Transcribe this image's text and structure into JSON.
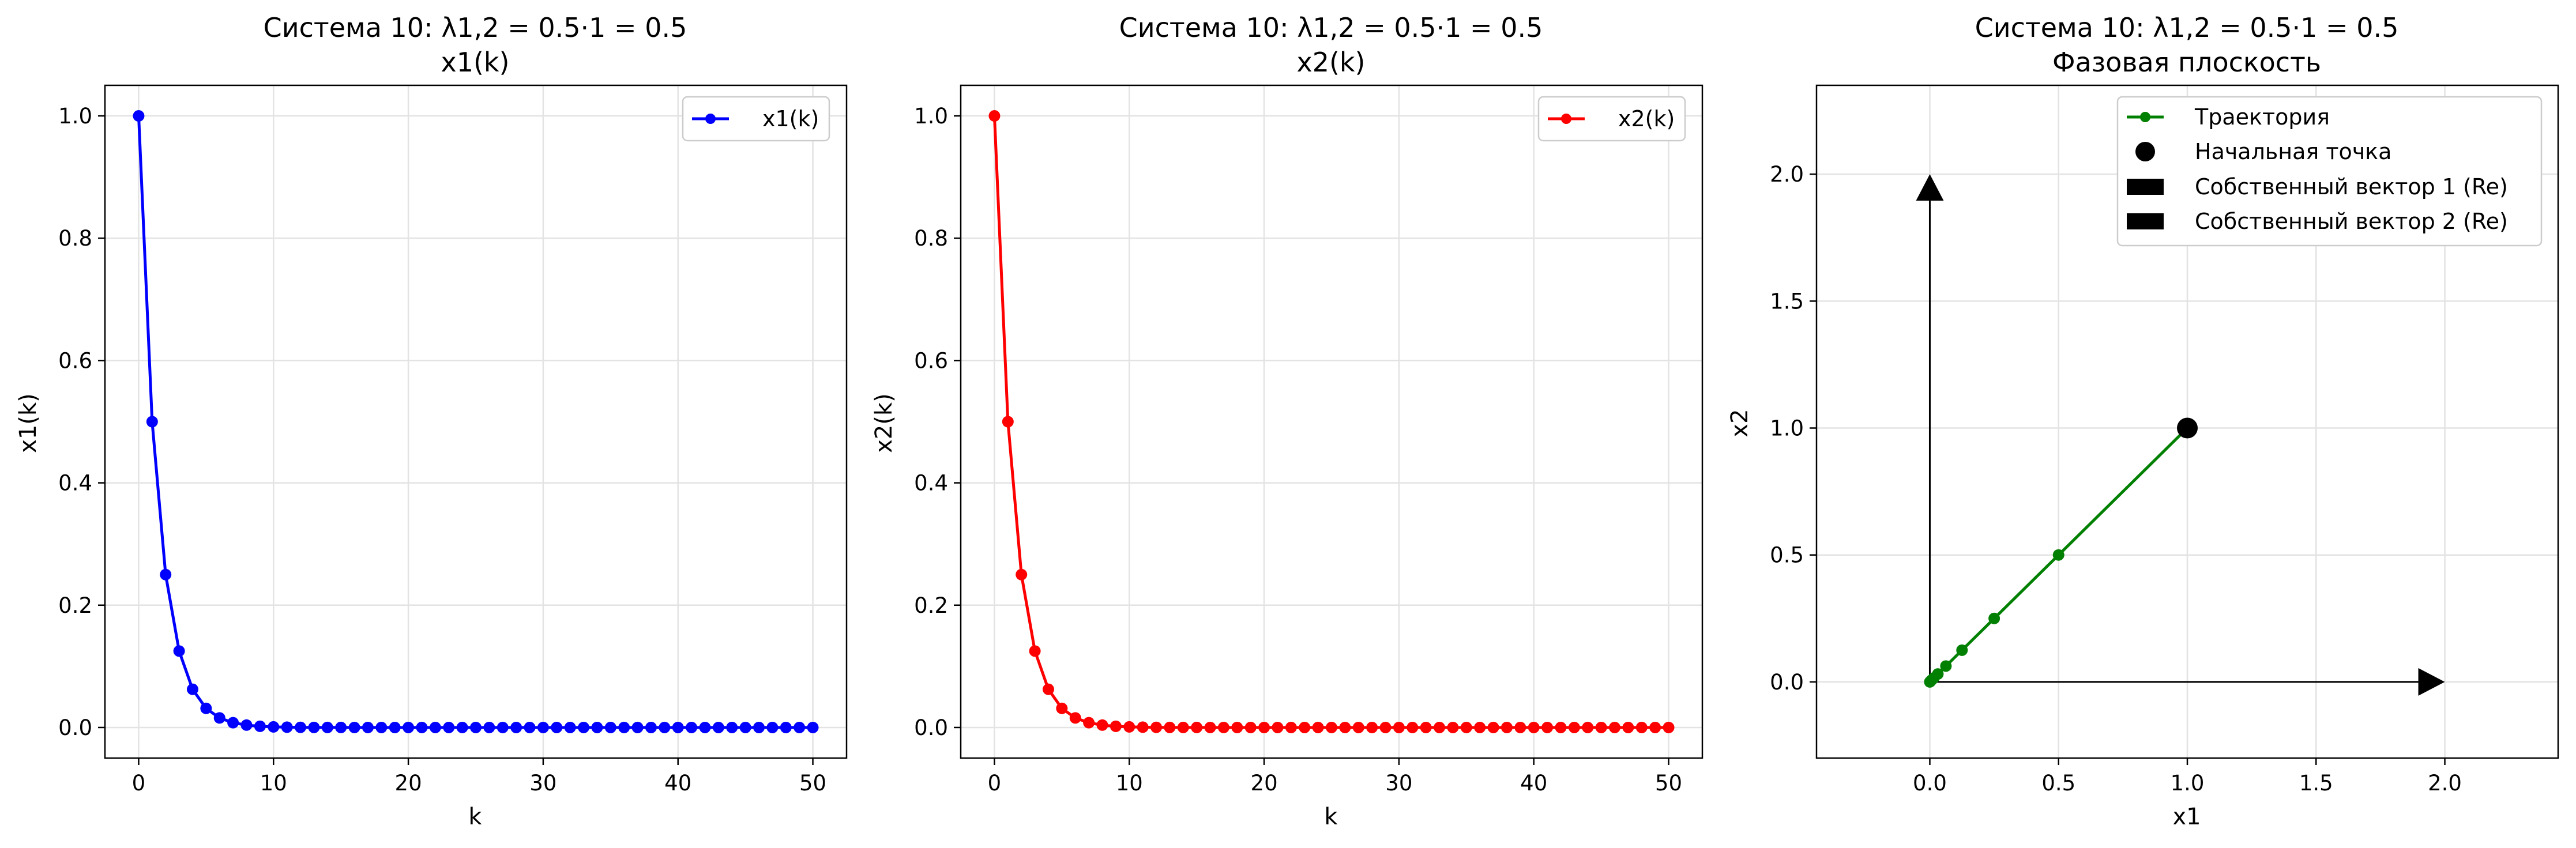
{
  "chart_data": [
    {
      "type": "line",
      "title": "Система 10: λ1,2 = 0.5·1 = 0.5",
      "subtitle": "x1(k)",
      "xlabel": "k",
      "ylabel": "x1(k)",
      "xlim": [
        -2.5,
        52.5
      ],
      "ylim": [
        -0.05,
        1.05
      ],
      "xticks": [
        0,
        10,
        20,
        30,
        40,
        50
      ],
      "xtick_labels": [
        "0",
        "10",
        "20",
        "30",
        "40",
        "50"
      ],
      "yticks": [
        0.0,
        0.2,
        0.4,
        0.6,
        0.8,
        1.0
      ],
      "ytick_labels": [
        "0.0",
        "0.2",
        "0.4",
        "0.6",
        "0.8",
        "1.0"
      ],
      "grid": true,
      "legend": "top-right",
      "series": [
        {
          "name": "x1(k)",
          "color": "#0000ff",
          "marker": "circle",
          "x": [
            0,
            1,
            2,
            3,
            4,
            5,
            6,
            7,
            8,
            9,
            10,
            11,
            12,
            13,
            14,
            15,
            16,
            17,
            18,
            19,
            20,
            21,
            22,
            23,
            24,
            25,
            26,
            27,
            28,
            29,
            30,
            31,
            32,
            33,
            34,
            35,
            36,
            37,
            38,
            39,
            40,
            41,
            42,
            43,
            44,
            45,
            46,
            47,
            48,
            49,
            50
          ],
          "y": [
            1.0,
            0.5,
            0.25,
            0.125,
            0.0625,
            0.03125,
            0.015625,
            0.0078125,
            0.00390625,
            0.001953125,
            0.0009765625,
            0.00048828125,
            0.000244140625,
            0.0001220703125,
            6.103515625e-05,
            3.0517578125e-05,
            1.52587890625e-05,
            7.62939453125e-06,
            3.814697265625e-06,
            1.9073486328125e-06,
            9.5367431640625e-07,
            0,
            0,
            0,
            0,
            0,
            0,
            0,
            0,
            0,
            0,
            0,
            0,
            0,
            0,
            0,
            0,
            0,
            0,
            0,
            0,
            0,
            0,
            0,
            0,
            0,
            0,
            0,
            0,
            0,
            0
          ]
        }
      ]
    },
    {
      "type": "line",
      "title": "Система 10: λ1,2 = 0.5·1 = 0.5",
      "subtitle": "x2(k)",
      "xlabel": "k",
      "ylabel": "x2(k)",
      "xlim": [
        -2.5,
        52.5
      ],
      "ylim": [
        -0.05,
        1.05
      ],
      "xticks": [
        0,
        10,
        20,
        30,
        40,
        50
      ],
      "xtick_labels": [
        "0",
        "10",
        "20",
        "30",
        "40",
        "50"
      ],
      "yticks": [
        0.0,
        0.2,
        0.4,
        0.6,
        0.8,
        1.0
      ],
      "ytick_labels": [
        "0.0",
        "0.2",
        "0.4",
        "0.6",
        "0.8",
        "1.0"
      ],
      "grid": true,
      "legend": "top-right",
      "series": [
        {
          "name": "x2(k)",
          "color": "#ff0000",
          "marker": "circle",
          "x": [
            0,
            1,
            2,
            3,
            4,
            5,
            6,
            7,
            8,
            9,
            10,
            11,
            12,
            13,
            14,
            15,
            16,
            17,
            18,
            19,
            20,
            21,
            22,
            23,
            24,
            25,
            26,
            27,
            28,
            29,
            30,
            31,
            32,
            33,
            34,
            35,
            36,
            37,
            38,
            39,
            40,
            41,
            42,
            43,
            44,
            45,
            46,
            47,
            48,
            49,
            50
          ],
          "y": [
            1.0,
            0.5,
            0.25,
            0.125,
            0.0625,
            0.03125,
            0.015625,
            0.0078125,
            0.00390625,
            0.001953125,
            0.0009765625,
            0.00048828125,
            0.000244140625,
            0.0001220703125,
            6.103515625e-05,
            3.0517578125e-05,
            1.52587890625e-05,
            7.62939453125e-06,
            3.814697265625e-06,
            1.9073486328125e-06,
            9.5367431640625e-07,
            0,
            0,
            0,
            0,
            0,
            0,
            0,
            0,
            0,
            0,
            0,
            0,
            0,
            0,
            0,
            0,
            0,
            0,
            0,
            0,
            0,
            0,
            0,
            0,
            0,
            0,
            0,
            0,
            0,
            0
          ]
        }
      ]
    },
    {
      "type": "phase",
      "title": "Система 10: λ1,2 = 0.5·1 = 0.5",
      "subtitle": "Фазовая плоскость",
      "xlabel": "x1",
      "ylabel": "x2",
      "xlim": [
        -0.44,
        2.44
      ],
      "ylim": [
        -0.3,
        2.35
      ],
      "xticks": [
        0.0,
        0.5,
        1.0,
        1.5,
        2.0
      ],
      "xtick_labels": [
        "0.0",
        "0.5",
        "1.0",
        "1.5",
        "2.0"
      ],
      "yticks": [
        0.0,
        0.5,
        1.0,
        1.5,
        2.0
      ],
      "ytick_labels": [
        "0.0",
        "0.5",
        "1.0",
        "1.5",
        "2.0"
      ],
      "grid": true,
      "legend": "top-right",
      "trajectory": {
        "name": "Траектория",
        "color": "#008000",
        "x": [
          1.0,
          0.5,
          0.25,
          0.125,
          0.0625,
          0.03125,
          0.015625,
          0.0078125,
          0.00390625,
          0.001953125,
          0.0009765625,
          0
        ],
        "y": [
          1.0,
          0.5,
          0.25,
          0.125,
          0.0625,
          0.03125,
          0.015625,
          0.0078125,
          0.00390625,
          0.001953125,
          0.0009765625,
          0
        ]
      },
      "start_point": {
        "name": "Начальная точка",
        "x": 1.0,
        "y": 1.0,
        "color": "#000000"
      },
      "vectors": [
        {
          "name": "Собственный вектор 1 (Re)",
          "x": 2.0,
          "y": 0.0,
          "color": "#000000"
        },
        {
          "name": "Собственный вектор 2 (Re)",
          "x": 0.0,
          "y": 2.0,
          "color": "#000000"
        }
      ]
    }
  ]
}
